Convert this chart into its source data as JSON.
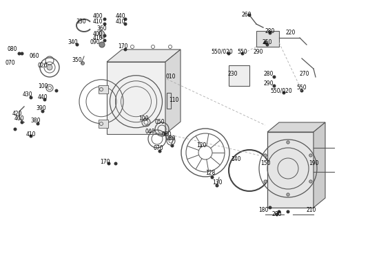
{
  "bg_color": "#ffffff",
  "line_color": "#555555",
  "text_color": "#000000",
  "fig_width": 5.66,
  "fig_height": 4.0,
  "dpi": 100
}
